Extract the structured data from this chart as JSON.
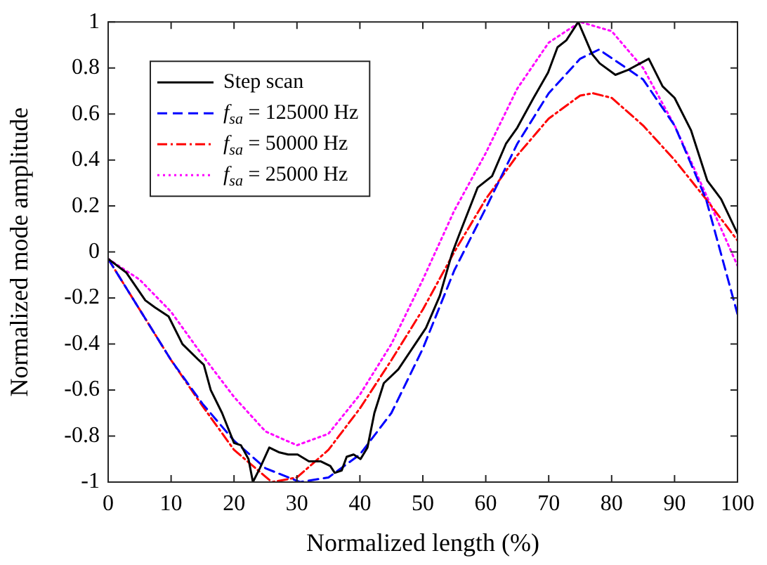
{
  "chart_data": {
    "type": "line",
    "xlabel": "Normalized length (%)",
    "ylabel": "Normalized mode amplitude",
    "xlim": [
      0,
      100
    ],
    "xticks": [
      0,
      10,
      20,
      30,
      40,
      50,
      60,
      70,
      80,
      90,
      100
    ],
    "ylim": [
      -1,
      1
    ],
    "yticks": [
      -1,
      -0.8,
      -0.6,
      -0.4,
      -0.2,
      0,
      0.2,
      0.4,
      0.6,
      0.8,
      1
    ],
    "grid": false,
    "legend": "top left",
    "marker": "none",
    "series": [
      {
        "name": "Step scan",
        "color": "#000000",
        "line_style": "solid",
        "x": [
          0,
          2.9,
          5.9,
          7.4,
          9.6,
          11.8,
          14.4,
          15.2,
          16.3,
          18.1,
          20.0,
          21.1,
          22.3,
          23.0,
          24.1,
          25.6,
          27.1,
          28.6,
          30.1,
          31.9,
          33.8,
          35.3,
          36.0,
          37.1,
          37.9,
          39.0,
          40.1,
          41.2,
          42.3,
          43.8,
          46.1,
          48.3,
          50.5,
          52.7,
          54.6,
          55.7,
          58.7,
          61.0,
          63.2,
          65.0,
          67.6,
          69.9,
          71.4,
          72.8,
          74.7,
          76.9,
          78.1,
          80.6,
          82.5,
          85.9,
          88.1,
          90.0,
          92.6,
          95.2,
          97.4,
          100
        ],
        "values": [
          -0.03,
          -0.09,
          -0.21,
          -0.24,
          -0.28,
          -0.4,
          -0.47,
          -0.49,
          -0.6,
          -0.7,
          -0.83,
          -0.84,
          -0.9,
          -1.0,
          -0.94,
          -0.85,
          -0.87,
          -0.88,
          -0.88,
          -0.91,
          -0.91,
          -0.93,
          -0.96,
          -0.95,
          -0.89,
          -0.88,
          -0.9,
          -0.85,
          -0.7,
          -0.57,
          -0.51,
          -0.42,
          -0.33,
          -0.19,
          -0.01,
          0.07,
          0.28,
          0.33,
          0.47,
          0.54,
          0.67,
          0.78,
          0.89,
          0.92,
          1.0,
          0.86,
          0.82,
          0.77,
          0.79,
          0.84,
          0.72,
          0.67,
          0.53,
          0.31,
          0.23,
          0.08
        ]
      },
      {
        "name": "f$_{sa}$ = 125000 Hz",
        "color": "#0000ff",
        "line_style": "dashed",
        "x": [
          0,
          5,
          10,
          15,
          20,
          25,
          30.5,
          35,
          40,
          45,
          50,
          55,
          60,
          65,
          70,
          75,
          78,
          85,
          90,
          95,
          100
        ],
        "values": [
          -0.03,
          -0.25,
          -0.47,
          -0.66,
          -0.82,
          -0.94,
          -1.0,
          -0.98,
          -0.88,
          -0.7,
          -0.42,
          -0.08,
          0.19,
          0.47,
          0.69,
          0.84,
          0.88,
          0.75,
          0.55,
          0.23,
          -0.27
        ]
      },
      {
        "name": "f$_{sa}$ = 50000 Hz",
        "color": "#ff0000",
        "line_style": "dashdot",
        "x": [
          0,
          5,
          10,
          15,
          20,
          26,
          30,
          35,
          40,
          45,
          50,
          55,
          60,
          65,
          70,
          75,
          77,
          80,
          85,
          90,
          95,
          100
        ],
        "values": [
          -0.03,
          -0.25,
          -0.47,
          -0.67,
          -0.86,
          -1.0,
          -0.98,
          -0.86,
          -0.68,
          -0.47,
          -0.25,
          0.0,
          0.23,
          0.42,
          0.58,
          0.68,
          0.69,
          0.67,
          0.55,
          0.4,
          0.23,
          0.05
        ]
      },
      {
        "name": "f$_{sa}$ = 25000 Hz",
        "color": "#ff00ff",
        "line_style": "dotted",
        "x": [
          0,
          5,
          10,
          15,
          20,
          25,
          30,
          35,
          40,
          45,
          50,
          55,
          60,
          65,
          70,
          75,
          80,
          85,
          90,
          95,
          100
        ],
        "values": [
          -0.03,
          -0.12,
          -0.26,
          -0.45,
          -0.63,
          -0.78,
          -0.84,
          -0.79,
          -0.62,
          -0.4,
          -0.12,
          0.18,
          0.43,
          0.71,
          0.91,
          1.0,
          0.96,
          0.8,
          0.55,
          0.25,
          -0.06
        ]
      }
    ]
  }
}
